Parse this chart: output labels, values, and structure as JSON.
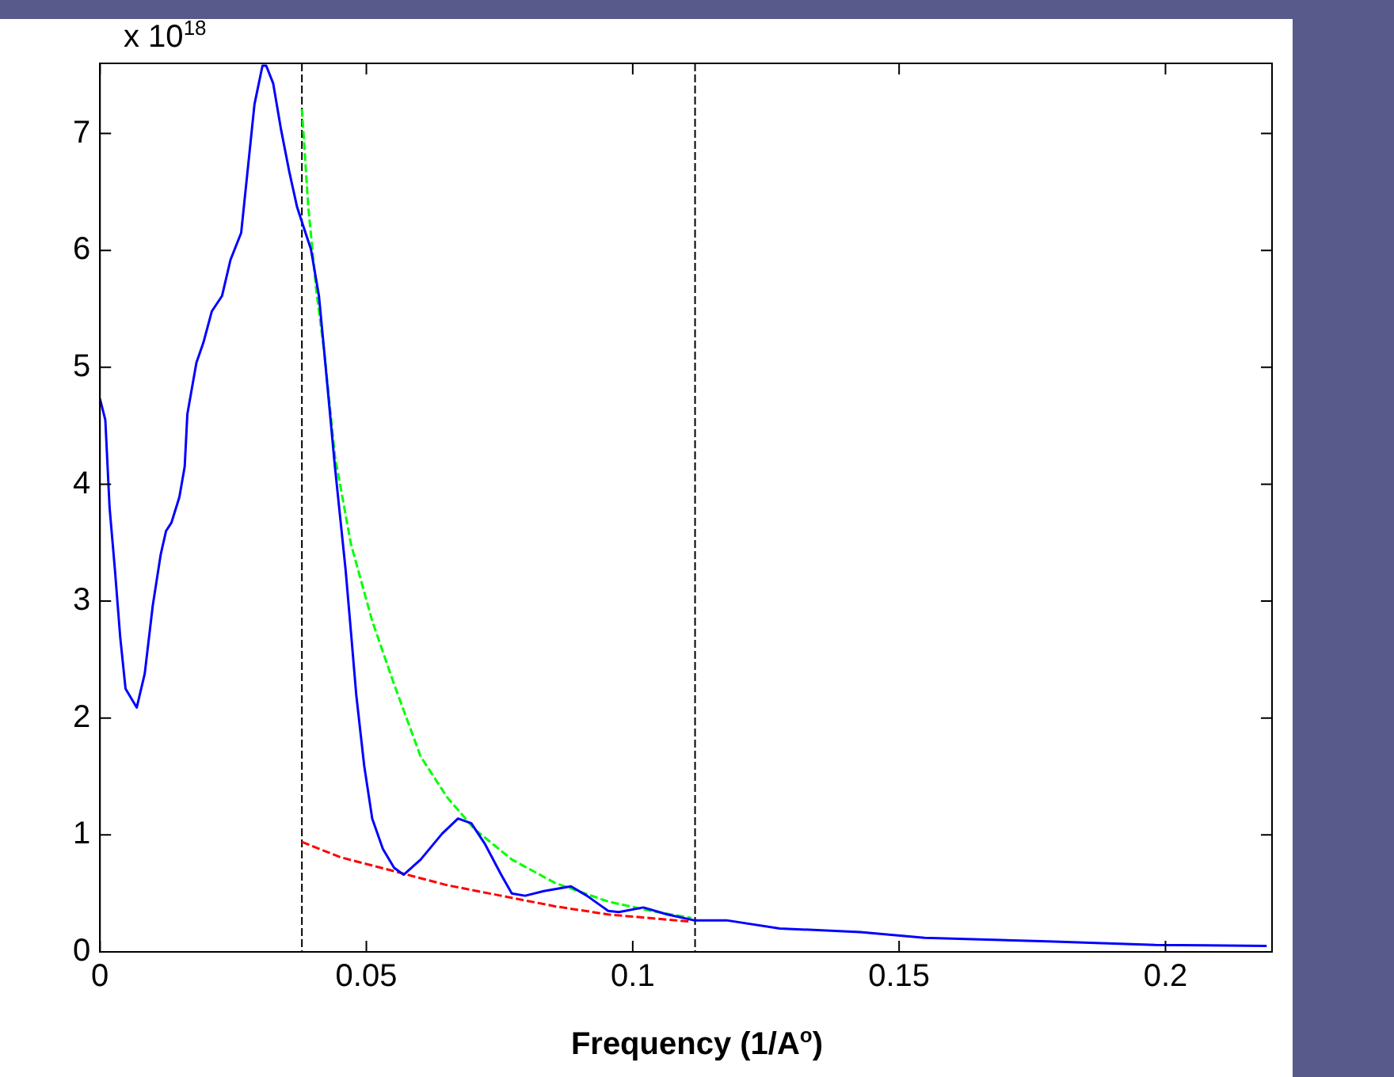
{
  "chart_data": {
    "type": "line",
    "xlabel": "Frequency (1/A$^{o}$)",
    "annotations": [
      "x 10$^{18}$"
    ],
    "xlim": [
      0,
      0.22
    ],
    "ylim": [
      0,
      7.6
    ],
    "xticks": [
      0,
      0.05,
      0.1,
      0.15,
      0.2
    ],
    "yticks": [
      0,
      1,
      2,
      3,
      4,
      5,
      6,
      7
    ],
    "grid": false,
    "legend": false,
    "marker": "none",
    "ref_lines": [
      {
        "axis": "x",
        "value": 0.0379,
        "color": "#000000",
        "line_style": "dashed"
      },
      {
        "axis": "x",
        "value": 0.1117,
        "color": "#000000",
        "line_style": "dashed"
      }
    ],
    "series": [
      {
        "color": "#0000ff",
        "line_style": "solid",
        "x": [
          0,
          0.001,
          0.0018,
          0.0028,
          0.0038,
          0.0048,
          0.0069,
          0.0084,
          0.0099,
          0.0114,
          0.0124,
          0.0134,
          0.0149,
          0.0159,
          0.0164,
          0.0181,
          0.0194,
          0.021,
          0.0229,
          0.0245,
          0.0265,
          0.0275,
          0.029,
          0.0305,
          0.0312,
          0.0325,
          0.034,
          0.0355,
          0.037,
          0.038,
          0.0396,
          0.0411,
          0.0421,
          0.0431,
          0.0441,
          0.0451,
          0.0461,
          0.0471,
          0.0481,
          0.0496,
          0.0511,
          0.0531,
          0.0552,
          0.057,
          0.0602,
          0.0642,
          0.0672,
          0.0697,
          0.0723,
          0.0753,
          0.0773,
          0.0798,
          0.0833,
          0.0884,
          0.0914,
          0.0954,
          0.0974,
          0.102,
          0.1065,
          0.1115,
          0.1176,
          0.1276,
          0.1427,
          0.1548,
          0.178,
          0.1981,
          0.219
        ],
        "values": [
          4.73,
          4.55,
          3.8,
          3.27,
          2.69,
          2.25,
          2.09,
          2.38,
          2.96,
          3.4,
          3.6,
          3.67,
          3.89,
          4.15,
          4.6,
          5.04,
          5.21,
          5.48,
          5.61,
          5.92,
          6.15,
          6.59,
          7.25,
          7.58,
          7.58,
          7.43,
          7.03,
          6.68,
          6.37,
          6.23,
          6.01,
          5.61,
          5.13,
          4.64,
          4.15,
          3.71,
          3.27,
          2.74,
          2.2,
          1.59,
          1.14,
          0.88,
          0.72,
          0.66,
          0.79,
          1.01,
          1.14,
          1.1,
          0.92,
          0.66,
          0.5,
          0.48,
          0.52,
          0.56,
          0.48,
          0.35,
          0.34,
          0.38,
          0.32,
          0.27,
          0.27,
          0.2,
          0.17,
          0.12,
          0.09,
          0.06,
          0.05
        ]
      },
      {
        "color": "#00ff00",
        "line_style": "dashed",
        "x": [
          0.0379,
          0.0391,
          0.0406,
          0.0421,
          0.0441,
          0.0471,
          0.0511,
          0.0552,
          0.0602,
          0.0652,
          0.0703,
          0.0773,
          0.0854,
          0.0954,
          0.1035,
          0.111
        ],
        "values": [
          7.21,
          6.37,
          5.66,
          5.13,
          4.24,
          3.49,
          2.83,
          2.29,
          1.67,
          1.32,
          1.05,
          0.79,
          0.59,
          0.43,
          0.35,
          0.29
        ]
      },
      {
        "color": "#ff0000",
        "line_style": "dashed",
        "x": [
          0.0379,
          0.0451,
          0.0552,
          0.0652,
          0.0753,
          0.0854,
          0.0954,
          0.1105
        ],
        "values": [
          0.94,
          0.81,
          0.69,
          0.57,
          0.48,
          0.39,
          0.32,
          0.26
        ]
      }
    ]
  }
}
